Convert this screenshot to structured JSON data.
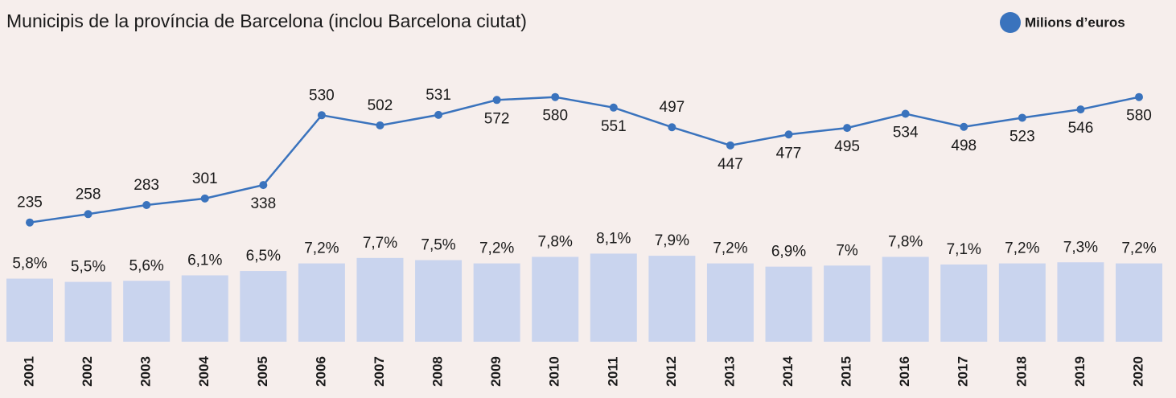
{
  "chart_data": {
    "type": "bar",
    "title": "Municipis de la província de Barcelona (inclou Barcelona ciutat)",
    "categories": [
      "2001",
      "2002",
      "2003",
      "2004",
      "2005",
      "2006",
      "2007",
      "2008",
      "2009",
      "2010",
      "2011",
      "2012",
      "2013",
      "2014",
      "2015",
      "2016",
      "2017",
      "2018",
      "2019",
      "2020"
    ],
    "series": [
      {
        "type": "bar",
        "color": "#c9d4ee",
        "values": [
          5.8,
          5.5,
          5.6,
          6.1,
          6.5,
          7.2,
          7.7,
          7.5,
          7.2,
          7.8,
          8.1,
          7.9,
          7.2,
          6.9,
          7,
          7.8,
          7.1,
          7.2,
          7.3,
          7.2
        ],
        "value_labels": [
          "5,8%",
          "5,5%",
          "5,6%",
          "6,1%",
          "6,5%",
          "7,2%",
          "7,7%",
          "7,5%",
          "7,2%",
          "7,8%",
          "8,1%",
          "7,9%",
          "7,2%",
          "6,9%",
          "7%",
          "7,8%",
          "7,1%",
          "7,2%",
          "7,3%",
          "7,2%"
        ]
      },
      {
        "type": "line",
        "name": "Milions d’euros",
        "color": "#3a73bd",
        "axis": "y2",
        "values": [
          235,
          258,
          283,
          301,
          338,
          530,
          502,
          531,
          572,
          580,
          551,
          497,
          447,
          477,
          495,
          534,
          498,
          523,
          546,
          580
        ]
      }
    ],
    "ylim": [
      0,
      25.5
    ],
    "y2lim": [
      -93,
      670
    ],
    "legend": "top-right"
  }
}
